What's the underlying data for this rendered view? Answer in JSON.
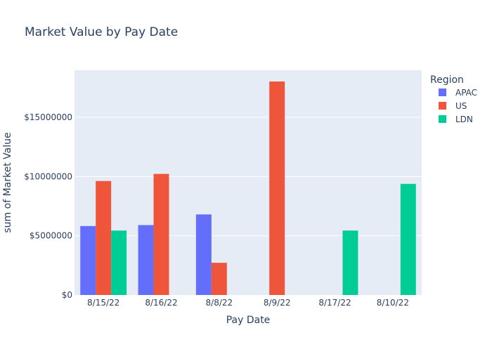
{
  "chart_data": {
    "type": "bar",
    "title": "Market Value by Pay Date",
    "xlabel": "Pay Date",
    "ylabel": "sum of Market Value",
    "categories": [
      "8/15/22",
      "8/16/22",
      "8/8/22",
      "8/9/22",
      "8/17/22",
      "8/10/22"
    ],
    "series": [
      {
        "name": "APAC",
        "color": "#636efa",
        "values": [
          5820000,
          5900000,
          6800000,
          null,
          null,
          null
        ]
      },
      {
        "name": "US",
        "color": "#ef553b",
        "values": [
          9620000,
          10220000,
          2720000,
          18020000,
          null,
          null
        ]
      },
      {
        "name": "LDN",
        "color": "#00cc96",
        "values": [
          5440000,
          null,
          null,
          null,
          5440000,
          9380000
        ]
      }
    ],
    "ylim": [
      0,
      18970000
    ],
    "y_ticks": [
      0,
      5000000,
      10000000,
      15000000
    ],
    "y_tick_labels": [
      "$0",
      "$5000000",
      "$10000000",
      "$15000000"
    ],
    "grid": true,
    "legend": {
      "title": "Region",
      "placement": "right"
    },
    "colors": {
      "plot_background": "#e5ecf6",
      "gridline": "#ffffff",
      "text": "#2a3f5f"
    }
  }
}
